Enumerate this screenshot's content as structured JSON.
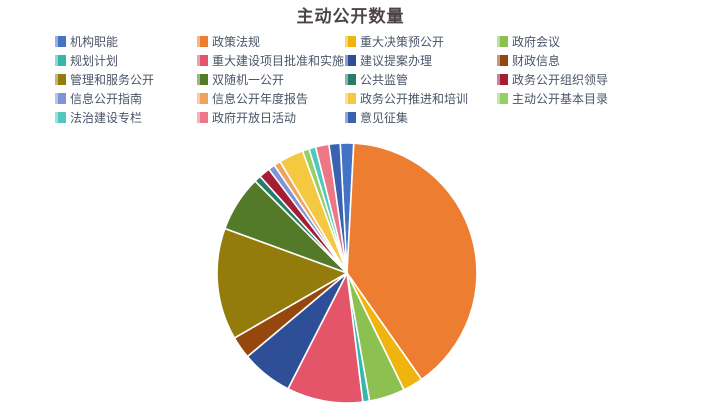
{
  "title": "主动公开数量",
  "chart_data": {
    "type": "pie",
    "title": "主动公开数量",
    "legend_position": "top",
    "background": "#ffffff",
    "start_angle_deg": -3,
    "slices": [
      {
        "label": "机构职能",
        "color": "#4472C4",
        "angle_deg": 6,
        "percent": 1.7
      },
      {
        "label": "政策法规",
        "color": "#ED7D31",
        "angle_deg": 142,
        "percent": 39.4
      },
      {
        "label": "重大决策预公开",
        "color": "#F0B40E",
        "angle_deg": 9,
        "percent": 2.5
      },
      {
        "label": "政府会议",
        "color": "#8CC152",
        "angle_deg": 16,
        "percent": 4.4
      },
      {
        "label": "规划计划",
        "color": "#35B8A9",
        "angle_deg": 3,
        "percent": 0.8
      },
      {
        "label": "重大建设项目批准和实施",
        "color": "#E4556A",
        "angle_deg": 34,
        "percent": 9.4
      },
      {
        "label": "建议提案办理",
        "color": "#2E4F97",
        "angle_deg": 23,
        "percent": 6.4
      },
      {
        "label": "财政信息",
        "color": "#96470E",
        "angle_deg": 10,
        "percent": 2.8
      },
      {
        "label": "管理和服务公开",
        "color": "#947C0C",
        "angle_deg": 50,
        "percent": 13.9
      },
      {
        "label": "双随机一公开",
        "color": "#527A29",
        "angle_deg": 25,
        "percent": 6.9
      },
      {
        "label": "公共监管",
        "color": "#267D6C",
        "angle_deg": 3,
        "percent": 0.8
      },
      {
        "label": "政务公开组织领导",
        "color": "#A41E35",
        "angle_deg": 5,
        "percent": 1.4
      },
      {
        "label": "信息公开指南",
        "color": "#7F96D6",
        "angle_deg": 3,
        "percent": 0.8
      },
      {
        "label": "信息公开年度报告",
        "color": "#F0A35C",
        "angle_deg": 3,
        "percent": 0.8
      },
      {
        "label": "政务公开推进和培训",
        "color": "#F5C842",
        "angle_deg": 11,
        "percent": 3.1
      },
      {
        "label": "主动公开基本目录",
        "color": "#94D066",
        "angle_deg": 3,
        "percent": 0.8
      },
      {
        "label": "法治建设专栏",
        "color": "#53C6C0",
        "angle_deg": 3,
        "percent": 0.8
      },
      {
        "label": "政府开放日活动",
        "color": "#EC7787",
        "angle_deg": 6,
        "percent": 1.7
      },
      {
        "label": "意见征集",
        "color": "#3A62B0",
        "angle_deg": 5,
        "percent": 1.4
      }
    ]
  }
}
